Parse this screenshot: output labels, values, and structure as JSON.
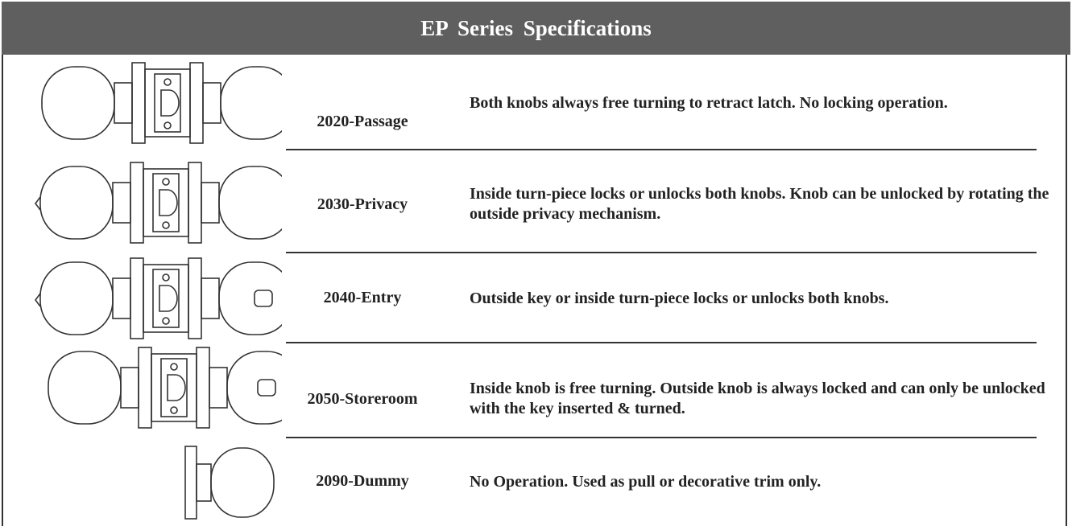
{
  "header": {
    "title": "EP Series Specifications"
  },
  "rows": [
    {
      "model": "2020-Passage",
      "description": "Both knobs always free turning to retract latch.  No locking operation."
    },
    {
      "model": "2030-Privacy",
      "description": "Inside turn-piece locks or unlocks both knobs.  Knob can be unlocked by rotating the outside privacy mechanism."
    },
    {
      "model": "2040-Entry",
      "description": "Outside key or inside turn-piece locks or unlocks both knobs."
    },
    {
      "model": "2050-Storeroom",
      "description": "Inside knob is free turning. Outside knob is always locked and can only be unlocked with the key inserted & turned."
    },
    {
      "model": "2090-Dummy",
      "description": "No Operation.  Used as pull or decorative trim only."
    }
  ]
}
